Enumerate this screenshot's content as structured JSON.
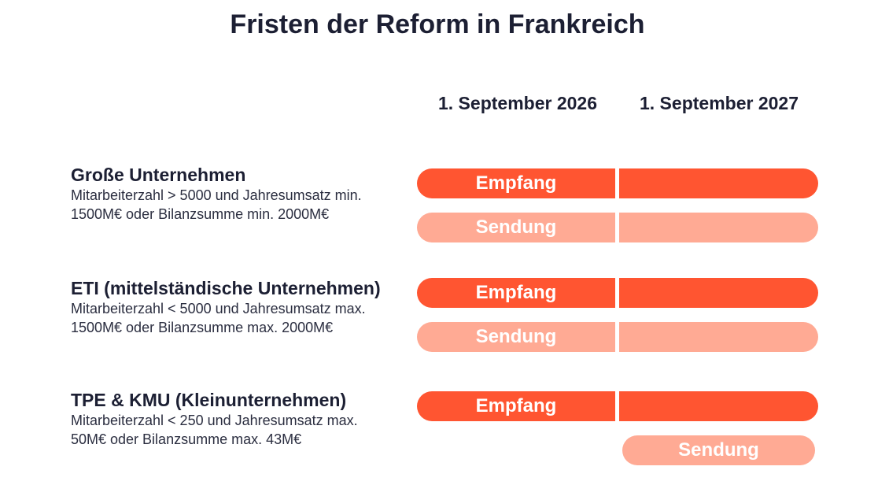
{
  "title": "Fristen der Reform in Frankreich",
  "columns": [
    "1. September 2026",
    "1. September 2027"
  ],
  "colors": {
    "empfang": "#ff5531",
    "sendung": "#ffaa94",
    "text": "#1c1f33"
  },
  "rows": [
    {
      "name": "Große Unternehmen",
      "description": "Mitarbeiterzahl > 5000 und Jahresumsatz min. 1500M€ oder Bilanzsumme min. 2000M€",
      "receive": {
        "label": "Empfang",
        "start": "1. September 2026"
      },
      "send": {
        "label": "Sendung",
        "start": "1. September 2026"
      }
    },
    {
      "name": "ETI (mittelständische Unternehmen)",
      "description": "Mitarbeiterzahl < 5000 und Jahresumsatz max. 1500M€ oder Bilanzsumme max. 2000M€",
      "receive": {
        "label": "Empfang",
        "start": "1. September 2026"
      },
      "send": {
        "label": "Sendung",
        "start": "1. September 2026"
      }
    },
    {
      "name": "TPE & KMU (Kleinunternehmen)",
      "description": "Mitarbeiterzahl < 250 und Jahresumsatz max. 50M€ oder Bilanzsumme max. 43M€",
      "receive": {
        "label": "Empfang",
        "start": "1. September 2026"
      },
      "send": {
        "label": "Sendung",
        "start": "1. September 2027"
      }
    }
  ]
}
